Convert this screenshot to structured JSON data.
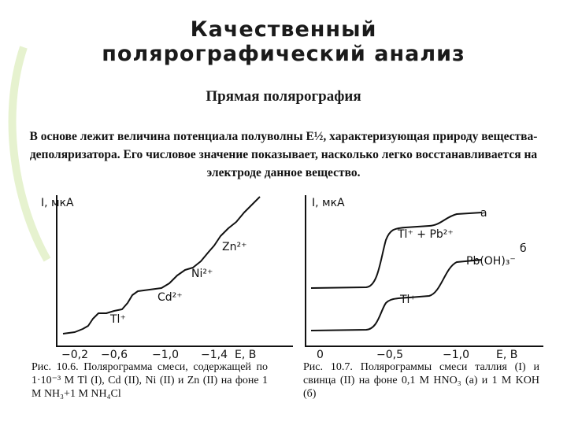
{
  "title_lines": [
    "Качественный",
    "полярографический анализ"
  ],
  "subtitle": "Прямая полярография",
  "paragraph": "В основе лежит величина потенциала полуволны E½, характеризующая природу вещества-деполяризатора. Его числовое значение показывает, насколько легко восстанавливается на электроде данное вещество.",
  "figures": [
    {
      "y_label": "I, мкА",
      "x_label": "E, В",
      "x_ticks": [
        "−0,2",
        "−0,6",
        "−1,0",
        "−1,4"
      ],
      "curve_labels": [
        "Tl⁺",
        "Cd²⁺",
        "Ni²⁺",
        "Zn²⁺"
      ],
      "caption": "Рис. 10.6. Полярограмма смеси, содержащей по 1·10⁻³ М Tl (I), Cd (II), Ni (II) и Zn (II) на фоне 1 М NH₃+1 М NH₄Cl"
    },
    {
      "y_label": "I, мкА",
      "x_label": "E, В",
      "x_ticks": [
        "0",
        "−0,5",
        "−1,0"
      ],
      "curve_labels": [
        "а",
        "Tl⁺ + Pb²⁺",
        "б",
        "Pb(OH)₃⁻",
        "Tl⁺"
      ],
      "caption": "Рис. 10.7. Полярограммы смеси таллия (I) и свинца (II) на фоне 0,1 М HNO₃ (а) и 1 М KOH (б)"
    }
  ]
}
